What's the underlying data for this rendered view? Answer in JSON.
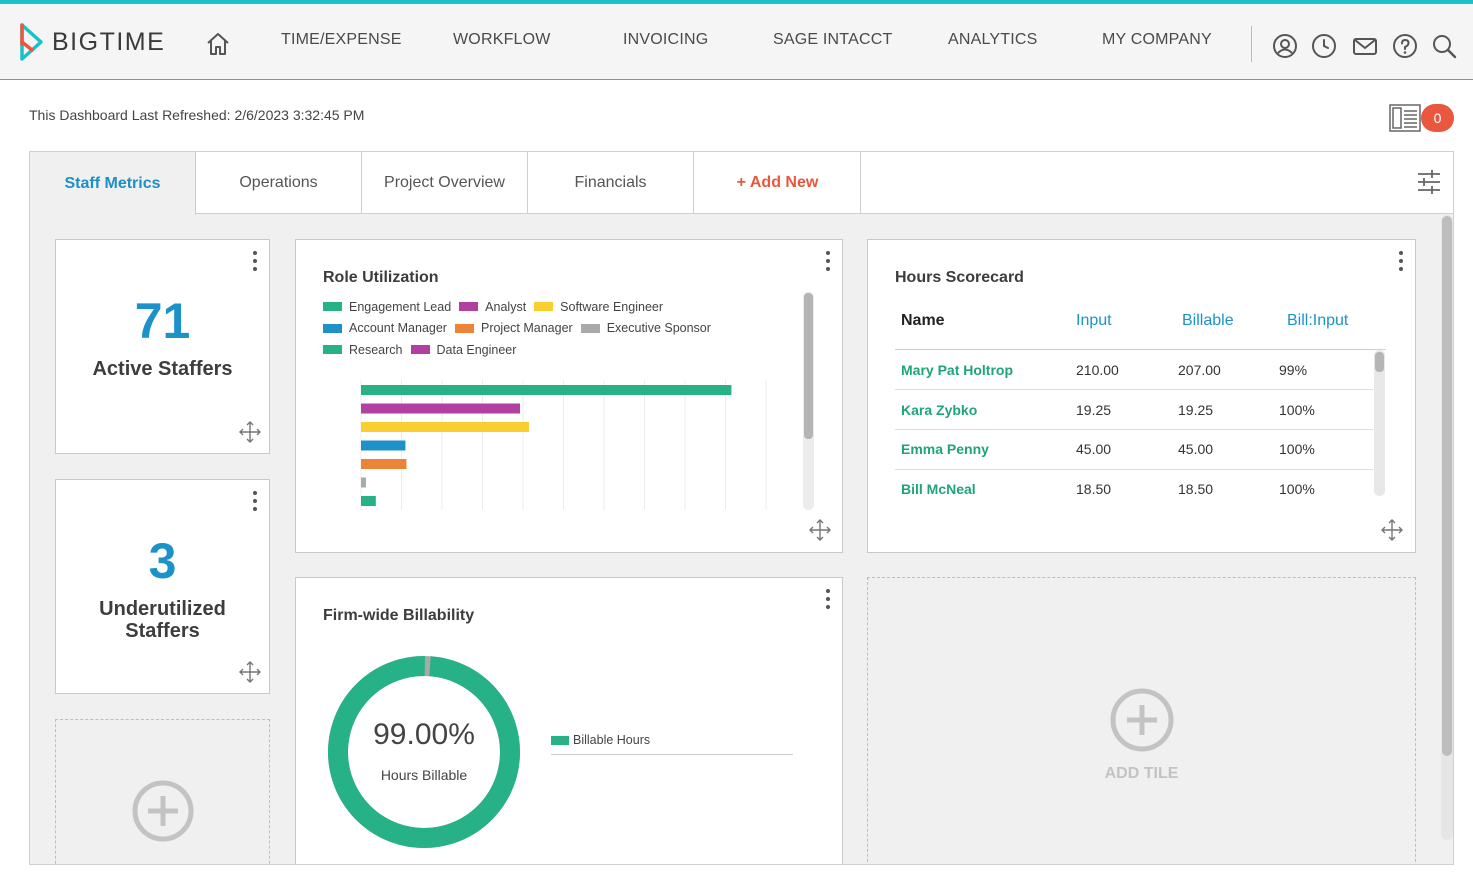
{
  "app": {
    "name": "BIGTIME"
  },
  "nav": {
    "items": [
      "TIME/EXPENSE",
      "WORKFLOW",
      "INVOICING",
      "SAGE INTACCT",
      "ANALYTICS",
      "MY COMPANY"
    ],
    "icons": [
      "user-icon",
      "clock-icon",
      "mail-icon",
      "help-icon",
      "search-icon"
    ]
  },
  "dashboard": {
    "refreshed": "This Dashboard Last Refreshed: 2/6/2023 3:32:45 PM",
    "notifications": "0",
    "tabs": [
      "Staff Metrics",
      "Operations",
      "Project Overview",
      "Financials",
      "+ Add New"
    ],
    "active_tab": "Staff Metrics"
  },
  "tiles": {
    "active_staffers": {
      "value": "71",
      "label": "Active Staffers"
    },
    "underutilized": {
      "value": "3",
      "label": "Underutilized Staffers"
    },
    "role_utilization": {
      "title": "Role Utilization",
      "legend": [
        {
          "name": "Engagement Lead",
          "color": "#26b286"
        },
        {
          "name": "Analyst",
          "color": "#b240a0"
        },
        {
          "name": "Software Engineer",
          "color": "#f8cf2f"
        },
        {
          "name": "Account Manager",
          "color": "#1f90c8"
        },
        {
          "name": "Project Manager",
          "color": "#ec8437"
        },
        {
          "name": "Executive Sponsor",
          "color": "#a9a9a9"
        },
        {
          "name": "Research",
          "color": "#26b286"
        },
        {
          "name": "Data Engineer",
          "color": "#b240a0"
        }
      ]
    },
    "hours_scorecard": {
      "title": "Hours Scorecard",
      "columns": [
        "Name",
        "Input",
        "Billable",
        "Bill:Input"
      ],
      "rows": [
        {
          "name": "Mary Pat Holtrop",
          "input": "210.00",
          "billable": "207.00",
          "ratio": "99%"
        },
        {
          "name": "Kara Zybko",
          "input": "19.25",
          "billable": "19.25",
          "ratio": "100%"
        },
        {
          "name": "Emma Penny",
          "input": "45.00",
          "billable": "45.00",
          "ratio": "100%"
        },
        {
          "name": "Bill McNeal",
          "input": "18.50",
          "billable": "18.50",
          "ratio": "100%"
        }
      ]
    },
    "billability": {
      "title": "Firm-wide Billability",
      "percent": "99.00%",
      "sublabel": "Hours Billable",
      "legend": "Billable Hours",
      "billable_fraction": 0.99,
      "colors": {
        "billable": "#26b286",
        "other": "#a9a9a9"
      }
    },
    "add_tile": {
      "label": "ADD TILE"
    }
  },
  "chart_data": {
    "type": "bar",
    "orientation": "horizontal",
    "categories": [
      "Engagement Lead",
      "Analyst",
      "Software Engineer",
      "Account Manager",
      "Project Manager",
      "Executive Sponsor",
      "Research"
    ],
    "values": [
      375,
      161,
      170,
      45,
      46,
      5,
      15
    ],
    "colors": [
      "#26b286",
      "#b240a0",
      "#f8cf2f",
      "#1f90c8",
      "#ec8437",
      "#a9a9a9",
      "#26b286"
    ],
    "xlim": [
      0,
      410
    ],
    "grid": true
  },
  "colors": {
    "accent": "#19c2c9",
    "link": "#1b93c9",
    "alert": "#e9573f",
    "green": "#26b286"
  }
}
